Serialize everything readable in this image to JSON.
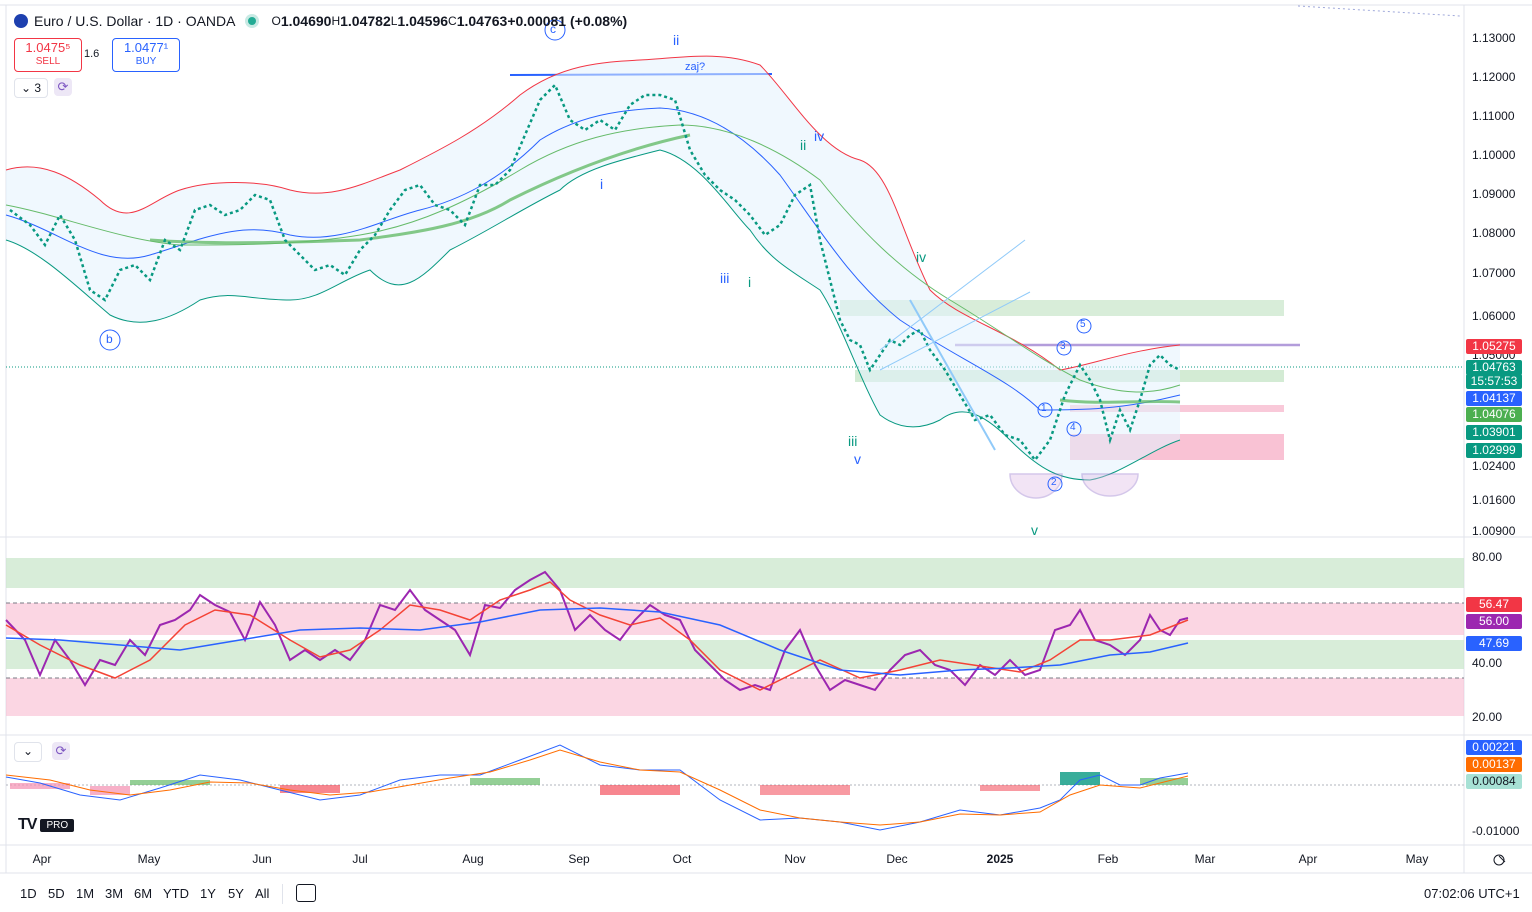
{
  "header": {
    "symbol": "Euro / U.S. Dollar · 1D · OANDA",
    "open_label": "O",
    "open": "1.04690",
    "high_label": "H",
    "high": "1.04782",
    "low_label": "L",
    "low": "1.04596",
    "close_label": "C",
    "close": "1.04763",
    "change": "+0.00081 (+0.08%)"
  },
  "trade": {
    "sell_price": "1.0475⁵",
    "sell_label": "SELL",
    "spread": "1.6",
    "buy_price": "1.0477¹",
    "buy_label": "BUY"
  },
  "indicators_count": "3",
  "price_axis": {
    "ticks": [
      "1.13000",
      "1.12000",
      "1.11000",
      "1.10000",
      "1.09000",
      "1.08000",
      "1.07000",
      "1.06000",
      "1.05000",
      "1.02400",
      "1.01600",
      "1.00900"
    ],
    "labels": [
      {
        "text": "1.05275",
        "color": "#f23645"
      },
      {
        "text": "1.04763",
        "color": "#089981"
      },
      {
        "text": "15:57:53",
        "color": "#089981"
      },
      {
        "text": "1.04137",
        "color": "#2962ff"
      },
      {
        "text": "1.04076",
        "color": "#4caf50"
      },
      {
        "text": "1.03901",
        "color": "#089981"
      },
      {
        "text": "1.02999",
        "color": "#089981"
      }
    ]
  },
  "rsi_axis": {
    "ticks": [
      "80.00",
      "40.00",
      "20.00"
    ],
    "labels": [
      {
        "text": "56.47",
        "color": "#f23645"
      },
      {
        "text": "56.00",
        "color": "#9c27b0"
      },
      {
        "text": "47.69",
        "color": "#2962ff"
      }
    ]
  },
  "macd_axis": {
    "ticks": [
      "-0.01000"
    ],
    "labels": [
      {
        "text": "0.00221",
        "color": "#2962ff"
      },
      {
        "text": "0.00137",
        "color": "#ff6d00"
      },
      {
        "text": "0.00084",
        "color": "#a7e1d5"
      }
    ]
  },
  "time_axis": {
    "months": [
      "Apr",
      "May",
      "Jun",
      "Jul",
      "Aug",
      "Sep",
      "Oct",
      "Nov",
      "Dec",
      "2025",
      "Feb",
      "Mar",
      "Apr",
      "May"
    ]
  },
  "wave_labels": {
    "c": "c",
    "b": "b",
    "ii_top": "ii",
    "zaj": "zaj?",
    "i_sep": "i",
    "ii_oct": "ii",
    "iv_oct": "iv",
    "iii_oct": "iii",
    "i_oct": "i",
    "iv_nov": "iv",
    "iii_nov": "iii",
    "v_nov": "v",
    "v_jan": "v",
    "n1": "1",
    "n2": "2",
    "n3": "3",
    "n4": "4",
    "n5": "5"
  },
  "bottom_toolbar": {
    "timeframes": [
      "1D",
      "5D",
      "1M",
      "3M",
      "6M",
      "YTD",
      "1Y",
      "5Y",
      "All"
    ],
    "clock": "07:02:06 UTC+1"
  },
  "logo_text": "PRO",
  "colors": {
    "up": "#089981",
    "down": "#f23645",
    "accent": "#2962ff"
  }
}
